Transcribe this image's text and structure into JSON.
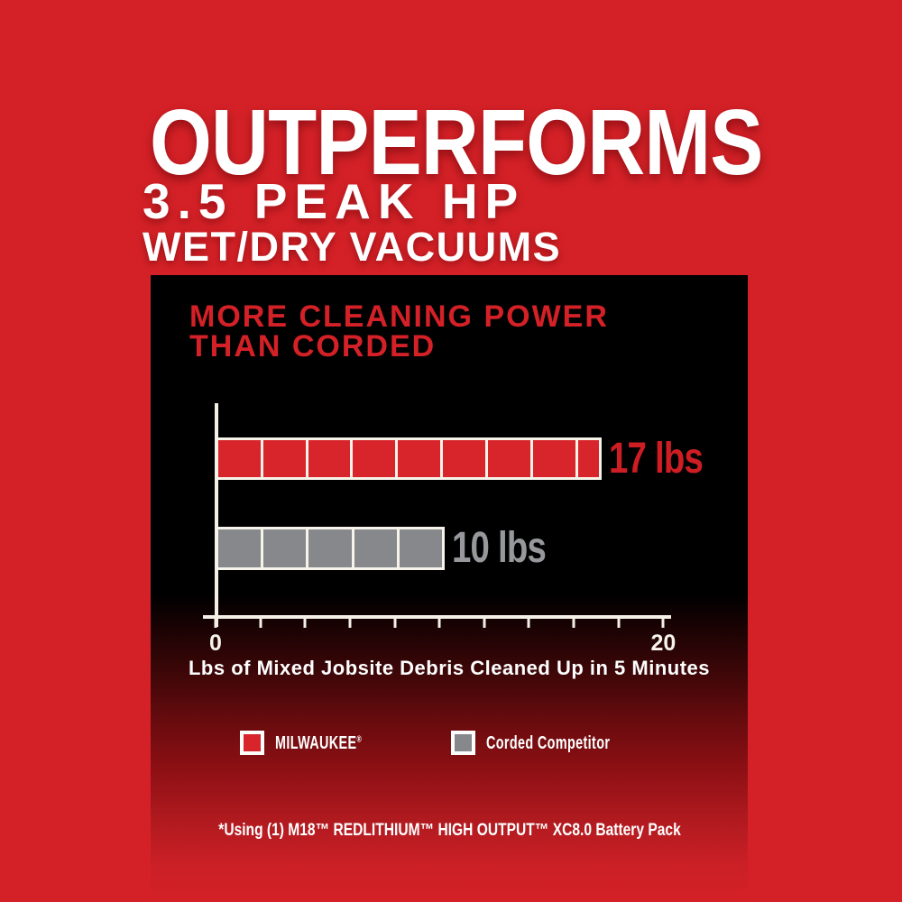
{
  "header": {
    "title": "OUTPERFORMS",
    "subtitle_line1": "3.5 PEAK HP",
    "subtitle_line2": "WET/DRY VACUUMS"
  },
  "chart_data": {
    "type": "bar",
    "orientation": "horizontal",
    "title": "MORE CLEANING POWER THAN CORDED",
    "title_lines": [
      "MORE CLEANING POWER",
      "THAN CORDED"
    ],
    "xlabel": "Lbs of Mixed Jobsite Debris Cleaned Up in 5 Minutes",
    "xlim": [
      0,
      20
    ],
    "tick_step": 2,
    "tick_labels_shown": {
      "min": "0",
      "max": "20"
    },
    "segment_lbs": 2,
    "grid": false,
    "legend_position": "bottom",
    "series": [
      {
        "name": "MILWAUKEE®",
        "value": 17,
        "value_label": "17 lbs",
        "color": "#d8242b",
        "label_color": "#cf1d24"
      },
      {
        "name": "Corded Competitor",
        "value": 10,
        "value_label": "10 lbs",
        "color": "#87888c",
        "label_color": "#97989c"
      }
    ]
  },
  "legend": {
    "items": [
      {
        "label": "MILWAUKEE",
        "mark": "®",
        "swatch_color": "#d8242b"
      },
      {
        "label": "Corded Competitor",
        "mark": "",
        "swatch_color": "#87888c"
      }
    ]
  },
  "footnote": "*Using (1) M18™ REDLITHIUM™ HIGH OUTPUT™ XC8.0 Battery Pack",
  "colors": {
    "background": "#d42127",
    "panel_top": "#000000",
    "headline_text": "#ffffff",
    "chart_title_red": "#d42127",
    "axis_line": "#f4f0e6",
    "bar_outline": "#f6f3ea"
  }
}
